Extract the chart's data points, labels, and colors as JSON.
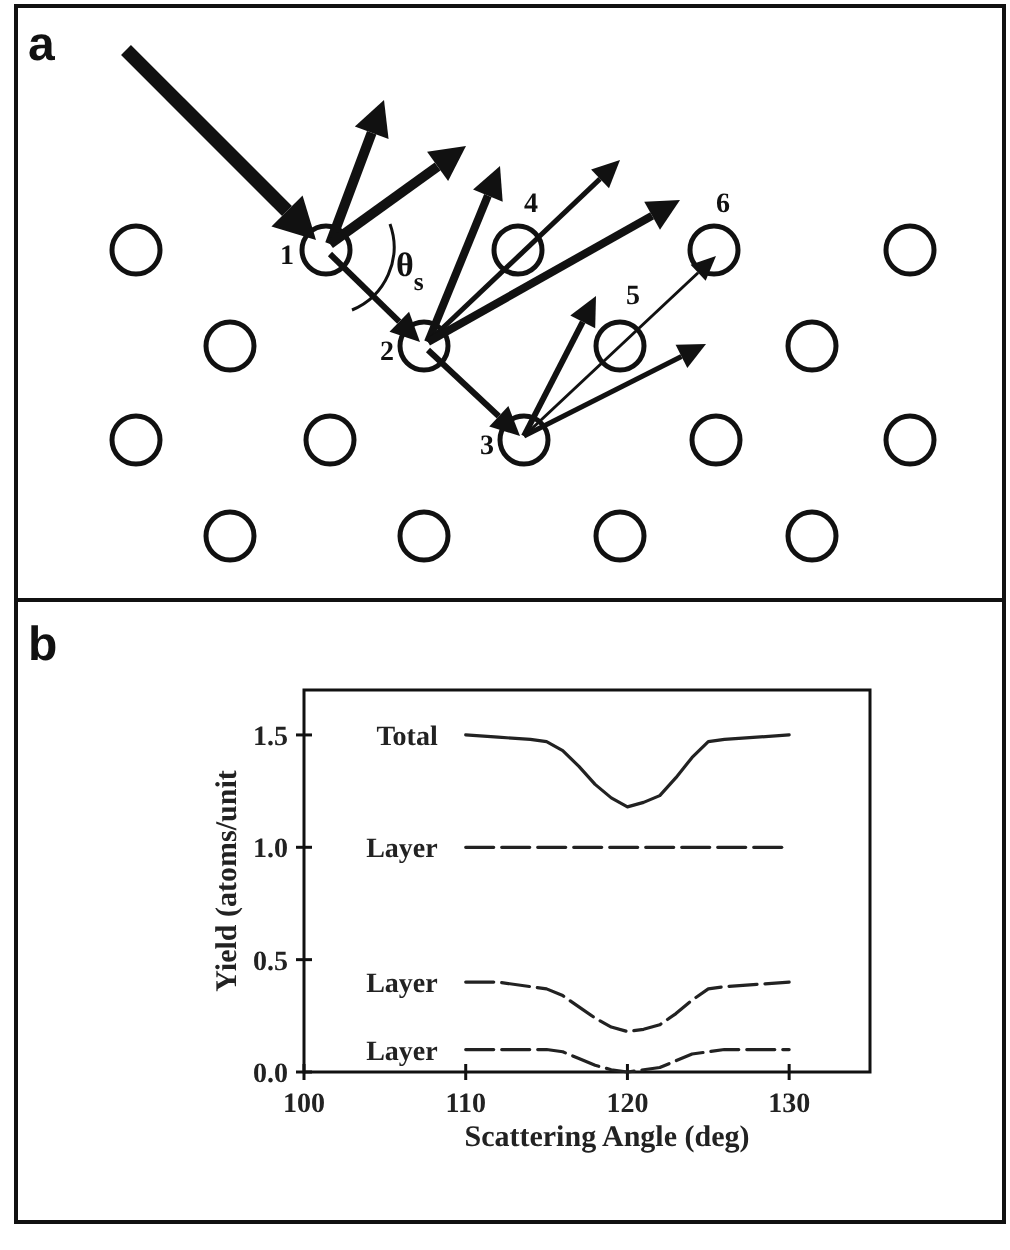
{
  "chart_data": {
    "type": "line",
    "xlabel": "Scattering Angle (deg)",
    "ylabel": "Yield (atoms/unit",
    "x": [
      110,
      112,
      114,
      115,
      116,
      117,
      118,
      119,
      120,
      121,
      122,
      123,
      124,
      125,
      126,
      128,
      130
    ],
    "series": [
      {
        "name": "Total",
        "color": "#222222",
        "line_style": "solid",
        "values": [
          1.5,
          1.49,
          1.48,
          1.47,
          1.43,
          1.36,
          1.28,
          1.22,
          1.18,
          1.2,
          1.23,
          1.31,
          1.4,
          1.47,
          1.48,
          1.49,
          1.5
        ]
      },
      {
        "name": "Layer",
        "color": "#222222",
        "line_style": "dashed",
        "x": [
          110,
          130
        ],
        "values": [
          1.0,
          1.0
        ]
      },
      {
        "name": "Layer",
        "color": "#222222",
        "line_style": "dashed",
        "values": [
          0.4,
          0.4,
          0.38,
          0.37,
          0.34,
          0.29,
          0.24,
          0.2,
          0.18,
          0.19,
          0.21,
          0.26,
          0.32,
          0.37,
          0.38,
          0.39,
          0.4
        ]
      },
      {
        "name": "Layer",
        "color": "#222222",
        "line_style": "dashed",
        "values": [
          0.1,
          0.1,
          0.1,
          0.1,
          0.09,
          0.06,
          0.03,
          0.01,
          0.0,
          0.01,
          0.02,
          0.05,
          0.08,
          0.09,
          0.1,
          0.1,
          0.1
        ]
      }
    ],
    "xlim": [
      100,
      135
    ],
    "xticks": [
      100,
      110,
      120,
      130
    ],
    "ylim": [
      0,
      1.7
    ],
    "yticks": [
      {
        "value": 0,
        "label": "0.0"
      },
      {
        "value": 0.5,
        "label": "0.5"
      },
      {
        "value": 1,
        "label": "1.0"
      },
      {
        "value": 1.5,
        "label": "1.5"
      }
    ],
    "marker": "none",
    "annotations": [
      "a",
      "1",
      "2",
      "3",
      "4",
      "5",
      "6",
      "θ$_{s}$",
      "b"
    ]
  }
}
